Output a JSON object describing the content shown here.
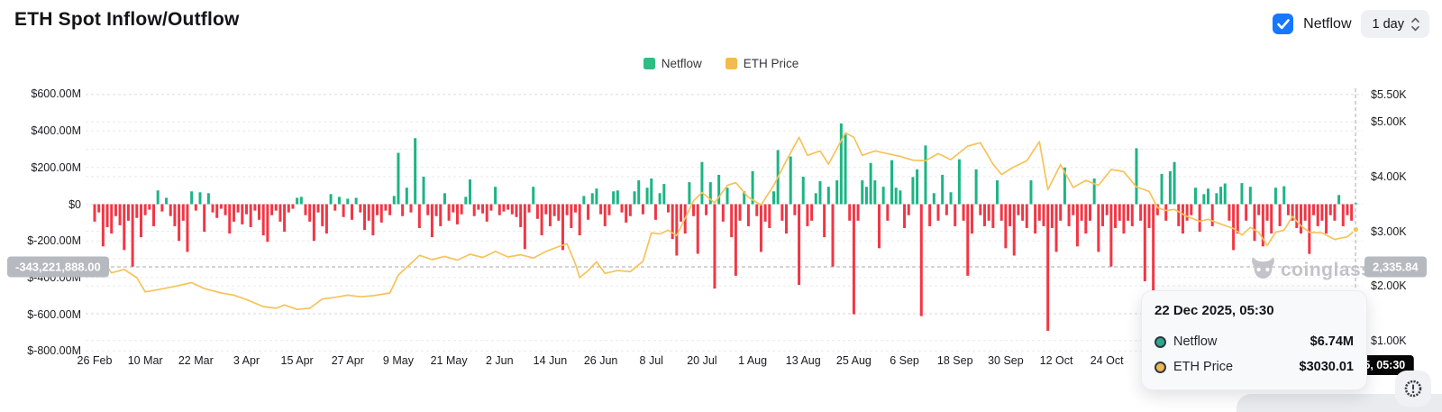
{
  "header": {
    "title": "ETH Spot Inflow/Outflow",
    "netflow_toggle_label": "Netflow",
    "netflow_toggle_checked": true,
    "interval_select": {
      "value": "1 day"
    }
  },
  "legend": [
    {
      "label": "Netflow",
      "color": "#2ebd85"
    },
    {
      "label": "ETH Price",
      "color": "#f2bb4b"
    }
  ],
  "watermark": {
    "text": "coinglass",
    "color": "#c2c4c9"
  },
  "crosshair": {
    "left_value_label": "-343,221,888.00",
    "right_value_label": "2,335.84",
    "x_value_label": "22 Dec 2025, 05:30"
  },
  "tooltip": {
    "title": "22 Dec 2025, 05:30",
    "rows": [
      {
        "label": "Netflow",
        "value": "$6.74M",
        "color": "#2ba98a"
      },
      {
        "label": "ETH Price",
        "value": "$3030.01",
        "color": "#f0b94f"
      }
    ]
  },
  "colors": {
    "bar_positive": "#1cb584",
    "bar_negative": "#f23645",
    "price_line": "#f6c35a",
    "grid": "#e9eaed",
    "crosshair": "#a7aaaf",
    "checkbox_blue": "#1677ff"
  },
  "chart_data": {
    "type": "bar+line",
    "title": "ETH Spot Inflow/Outflow",
    "start_date": "26 Feb",
    "end_date": "22 Dec 2025, 05:30",
    "x_tick_labels": [
      "26 Feb",
      "10 Mar",
      "22 Mar",
      "3 Apr",
      "15 Apr",
      "27 Apr",
      "9 May",
      "21 May",
      "2 Jun",
      "14 Jun",
      "26 Jun",
      "8 Jul",
      "20 Jul",
      "1 Aug",
      "13 Aug",
      "25 Aug",
      "6 Sep",
      "18 Sep",
      "30 Sep",
      "12 Oct",
      "24 Oct"
    ],
    "x_tick_interval_days": 12,
    "y_left": {
      "tick_labels": [
        "$600.00M",
        "$400.00M",
        "$200.00M",
        "$0",
        "$-200.00M",
        "$-400.00M",
        "$-600.00M",
        "$-800.00M"
      ],
      "tick_values_musd": [
        600,
        400,
        200,
        0,
        -200,
        -400,
        -600,
        -800
      ],
      "range_musd": [
        -800,
        600
      ]
    },
    "y_right": {
      "tick_labels": [
        "$5.50K",
        "$5.00K",
        "$4.00K",
        "$3.00K",
        "$2.00K",
        "$1.00K"
      ],
      "tick_values_usd": [
        5500,
        5000,
        4000,
        3000,
        2000,
        1000
      ],
      "range_usd": [
        500,
        5500
      ]
    },
    "grid": "dashed",
    "legend_position": "top-center",
    "series": [
      {
        "name": "Netflow",
        "type": "bar",
        "unit": "USD millions, daily",
        "values_musd": [
          -95,
          -45,
          -230,
          -125,
          -160,
          -65,
          -115,
          -250,
          -90,
          -340,
          -75,
          -180,
          -60,
          -30,
          -120,
          75,
          -40,
          35,
          -65,
          -120,
          -200,
          -90,
          -260,
          70,
          -35,
          65,
          -150,
          60,
          -45,
          -75,
          -25,
          -60,
          -160,
          -95,
          -45,
          -110,
          -55,
          -125,
          -35,
          -85,
          -170,
          -205,
          -60,
          -35,
          -95,
          -150,
          -45,
          -25,
          35,
          40,
          -60,
          -95,
          -200,
          -45,
          -120,
          -160,
          55,
          -35,
          40,
          -70,
          30,
          -85,
          35,
          -45,
          -140,
          -90,
          -170,
          -60,
          -100,
          -35,
          -60,
          45,
          280,
          -65,
          90,
          -45,
          360,
          -130,
          150,
          -60,
          -180,
          -65,
          -120,
          60,
          -90,
          -45,
          -110,
          -55,
          40,
          135,
          -65,
          -30,
          -50,
          -95,
          -35,
          95,
          -60,
          -40,
          -30,
          -55,
          -70,
          -125,
          -245,
          -45,
          95,
          -80,
          -170,
          -55,
          -120,
          -65,
          -90,
          -250,
          -60,
          -130,
          -45,
          -170,
          45,
          -85,
          60,
          85,
          -55,
          -120,
          -60,
          70,
          75,
          -45,
          -100,
          -65,
          70,
          130,
          -55,
          90,
          140,
          -85,
          60,
          110,
          -45,
          -190,
          -280,
          -95,
          -160,
          120,
          -65,
          -270,
          230,
          -60,
          120,
          -460,
          160,
          -95,
          90,
          -180,
          -390,
          -90,
          70,
          -120,
          180,
          -65,
          -260,
          -95,
          -130,
          70,
          295,
          -90,
          -160,
          260,
          -60,
          -440,
          150,
          -120,
          -90,
          60,
          125,
          -180,
          95,
          -340,
          130,
          440,
          380,
          -90,
          -600,
          -90,
          130,
          95,
          225,
          130,
          -240,
          95,
          -90,
          240,
          90,
          75,
          -130,
          -60,
          148,
          190,
          -610,
          320,
          -120,
          60,
          -90,
          160,
          -60,
          65,
          -120,
          245,
          -90,
          -390,
          -160,
          190,
          -60,
          -120,
          -90,
          -130,
          130,
          -90,
          -240,
          -120,
          -280,
          -60,
          -90,
          -130,
          130,
          -160,
          -90,
          -120,
          -690,
          -130,
          -260,
          -90,
          200,
          -120,
          -60,
          -230,
          -90,
          -160,
          -90,
          140,
          -260,
          -120,
          -60,
          -340,
          -130,
          -90,
          -160,
          -90,
          -120,
          305,
          -90,
          -420,
          -130,
          -520,
          -60,
          165,
          -90,
          180,
          230,
          -120,
          -160,
          -90,
          -60,
          90,
          -150,
          55,
          85,
          -120,
          60,
          95,
          113,
          -90,
          -250,
          -160,
          115,
          -90,
          95,
          -200,
          -60,
          -230,
          -90,
          -160,
          90,
          -120,
          98,
          -60,
          -90,
          -130,
          -160,
          -90,
          -271,
          -60,
          -120,
          -90,
          -160,
          -60,
          -90,
          50,
          -120,
          -60,
          -90,
          6.74
        ]
      },
      {
        "name": "ETH Price",
        "type": "line",
        "unit": "USD",
        "points_day_price": [
          [
            0,
            2310
          ],
          [
            2,
            2450
          ],
          [
            4,
            2240
          ],
          [
            7,
            2300
          ],
          [
            10,
            2150
          ],
          [
            12,
            1890
          ],
          [
            15,
            1930
          ],
          [
            19,
            1990
          ],
          [
            23,
            2060
          ],
          [
            26,
            1950
          ],
          [
            30,
            1870
          ],
          [
            33,
            1830
          ],
          [
            36,
            1750
          ],
          [
            40,
            1620
          ],
          [
            43,
            1590
          ],
          [
            45,
            1650
          ],
          [
            48,
            1570
          ],
          [
            51,
            1590
          ],
          [
            54,
            1760
          ],
          [
            57,
            1790
          ],
          [
            60,
            1830
          ],
          [
            63,
            1800
          ],
          [
            66,
            1820
          ],
          [
            70,
            1870
          ],
          [
            72,
            2200
          ],
          [
            74,
            2340
          ],
          [
            77,
            2560
          ],
          [
            80,
            2480
          ],
          [
            83,
            2540
          ],
          [
            86,
            2470
          ],
          [
            89,
            2580
          ],
          [
            92,
            2520
          ],
          [
            95,
            2630
          ],
          [
            98,
            2530
          ],
          [
            101,
            2570
          ],
          [
            104,
            2510
          ],
          [
            107,
            2630
          ],
          [
            110,
            2720
          ],
          [
            112,
            2770
          ],
          [
            114,
            2400
          ],
          [
            115,
            2150
          ],
          [
            117,
            2280
          ],
          [
            119,
            2440
          ],
          [
            121,
            2230
          ],
          [
            124,
            2280
          ],
          [
            127,
            2260
          ],
          [
            130,
            2450
          ],
          [
            132,
            2970
          ],
          [
            134,
            2950
          ],
          [
            136,
            3020
          ],
          [
            138,
            2920
          ],
          [
            140,
            3240
          ],
          [
            142,
            3560
          ],
          [
            144,
            3710
          ],
          [
            147,
            3520
          ],
          [
            150,
            3840
          ],
          [
            152,
            3890
          ],
          [
            155,
            3620
          ],
          [
            158,
            3480
          ],
          [
            161,
            3840
          ],
          [
            164,
            4290
          ],
          [
            167,
            4720
          ],
          [
            169,
            4390
          ],
          [
            172,
            4470
          ],
          [
            174,
            4230
          ],
          [
            178,
            4800
          ],
          [
            180,
            4720
          ],
          [
            182,
            4390
          ],
          [
            185,
            4470
          ],
          [
            188,
            4420
          ],
          [
            191,
            4370
          ],
          [
            194,
            4300
          ],
          [
            197,
            4290
          ],
          [
            200,
            4420
          ],
          [
            203,
            4310
          ],
          [
            207,
            4560
          ],
          [
            210,
            4620
          ],
          [
            213,
            4230
          ],
          [
            215,
            4040
          ],
          [
            218,
            4180
          ],
          [
            221,
            4290
          ],
          [
            224,
            4640
          ],
          [
            226,
            3760
          ],
          [
            229,
            4220
          ],
          [
            232,
            3800
          ],
          [
            235,
            3930
          ],
          [
            238,
            3840
          ],
          [
            241,
            4130
          ],
          [
            244,
            4090
          ],
          [
            247,
            3810
          ],
          [
            250,
            3730
          ],
          [
            252,
            3430
          ],
          [
            254,
            3380
          ],
          [
            256,
            3400
          ],
          [
            259,
            3270
          ],
          [
            262,
            3180
          ],
          [
            264,
            3220
          ],
          [
            267,
            3130
          ],
          [
            270,
            3050
          ],
          [
            272,
            2930
          ],
          [
            274,
            3070
          ],
          [
            276,
            2980
          ],
          [
            278,
            2740
          ],
          [
            280,
            2980
          ],
          [
            282,
            3020
          ],
          [
            284,
            3270
          ],
          [
            286,
            3100
          ],
          [
            288,
            2980
          ],
          [
            291,
            2970
          ],
          [
            294,
            2850
          ],
          [
            297,
            2900
          ],
          [
            299,
            3030
          ]
        ],
        "last_point_marker": {
          "day": 299,
          "price": 3030.01
        }
      }
    ]
  }
}
